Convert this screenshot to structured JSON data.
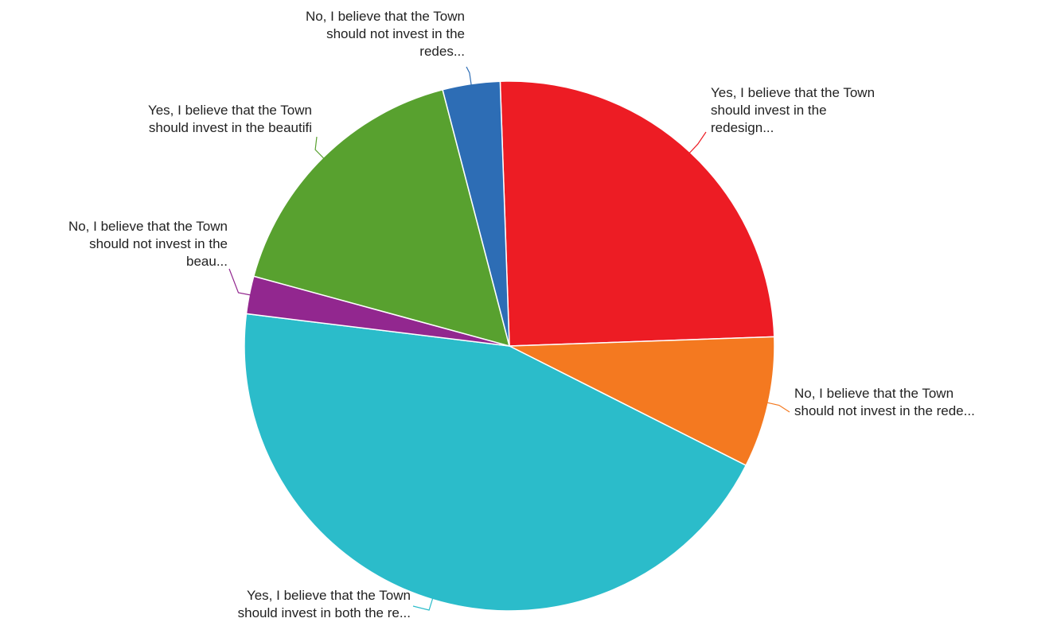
{
  "chart_data": {
    "type": "pie",
    "title": "",
    "slices": [
      {
        "label": [
          "Yes, I believe that the Town",
          "should invest in the",
          "redesign..."
        ],
        "value": 25.0,
        "color": "#ed1c24"
      },
      {
        "label": [
          "No, I believe that the Town",
          "should not invest in the rede..."
        ],
        "value": 8.0,
        "color": "#f47920"
      },
      {
        "label": [
          "Yes, I believe that the Town",
          "should invest in both the re..."
        ],
        "value": 44.5,
        "color": "#2bbcca"
      },
      {
        "label": [
          "No, I believe that the Town",
          "should not invest in the",
          "beau..."
        ],
        "value": 2.3,
        "color": "#92278f"
      },
      {
        "label": [
          "Yes, I believe that the Town",
          "should invest in the beautifi"
        ],
        "value": 16.7,
        "color": "#58a12f"
      },
      {
        "label": [
          "No, I believe that the Town",
          "should not invest in the",
          "redes..."
        ],
        "value": 3.5,
        "color": "#2d6db5"
      }
    ]
  }
}
